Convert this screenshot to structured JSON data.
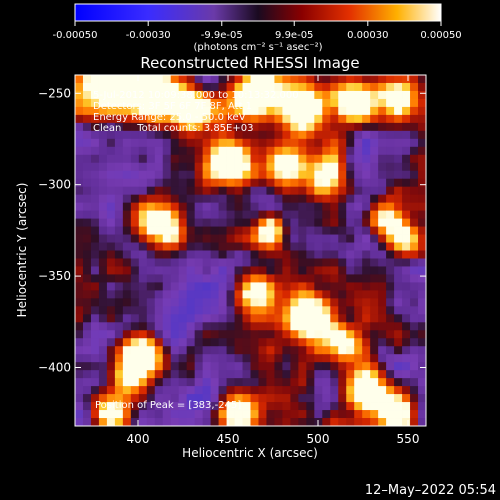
{
  "colorbar": {
    "tick_labels": [
      "-0.00050",
      "-0.00030",
      "-9.9e-05",
      "9.9e-05",
      "0.00030",
      "0.00050"
    ],
    "tick_values": [
      -0.0005,
      -0.0003,
      -9.9e-05,
      9.9e-05,
      0.0003,
      0.0005
    ],
    "range": [
      -0.0005,
      0.0005
    ],
    "unit_label": "(photons cm⁻² s⁻¹ asec⁻²)"
  },
  "chart_data": {
    "type": "heatmap",
    "title": "Reconstructed RHESSI Image",
    "xlabel": "Heliocentric X (arcsec)",
    "ylabel": "Heliocentric Y (arcsec)",
    "xlim": [
      365,
      560
    ],
    "ylim": [
      -432,
      -240
    ],
    "x_ticks": [
      400,
      450,
      500,
      550
    ],
    "x_tick_labels": [
      "400",
      "450",
      "500",
      "550"
    ],
    "y_ticks": [
      -400,
      -350,
      -300,
      -250
    ],
    "y_tick_labels": [
      "−400",
      "−350",
      "−300",
      "−250"
    ],
    "annotation_lines": [
      "5-Jul-2012 10:09:38.000 to 10:13:32.000",
      "Detectors: 3F 5F 6F 7F 8F, Att 1",
      "Energy Range: 25.0 - 50.0 keV",
      "Clean     Total counts: 3.85E+03"
    ],
    "peak_label": "Position of Peak = [383,-245]",
    "peak_position": [
      383,
      -245
    ],
    "grid": false,
    "colormap": [
      "#0000ff",
      "#5a2bd0",
      "#7f33a8",
      "#2a1a4a",
      "#7a0a0a",
      "#d22000",
      "#ff6a00",
      "#ffc000",
      "#ffffff"
    ]
  },
  "footer_timestamp": "12–May–2022 05:54"
}
